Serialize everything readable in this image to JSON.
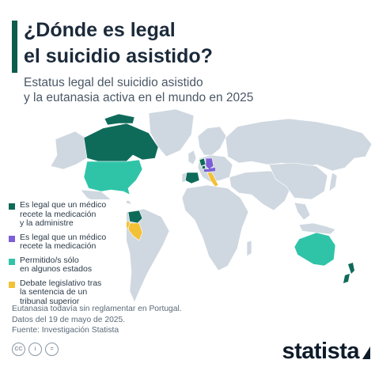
{
  "header": {
    "title_line1": "¿Dónde es legal",
    "title_line2": "el suicidio asistido?",
    "subtitle_line1": "Estatus legal del suicidio asistido",
    "subtitle_line2": "y la eutanasia activa en el mundo en 2025"
  },
  "colors": {
    "base_land": "#cfd8e0",
    "legal_doctor_prescribes_administers": "#0e6b5a",
    "legal_doctor_prescribes": "#7c5fd6",
    "allowed_some_states": "#2fc4a8",
    "legislative_debate": "#f2c136",
    "title_accent": "#0e5c4c"
  },
  "legend": {
    "items": [
      {
        "lines": [
          "Es legal que un médico",
          "recete la medicación",
          "y la administre"
        ],
        "color": "#0e6b5a"
      },
      {
        "lines": [
          "Es legal que un médico",
          "recete la medicación"
        ],
        "color": "#7c5fd6"
      },
      {
        "lines": [
          "Permitido/s sólo",
          "en algunos estados"
        ],
        "color": "#2fc4a8"
      },
      {
        "lines": [
          "Debate legislativo tras",
          "la sentencia de un",
          "tribunal superior"
        ],
        "color": "#f2c136"
      }
    ]
  },
  "notes": {
    "line1": "Eutanasia todavía sin reglamentar en Portugal.",
    "line2": "Datos del 19 de mayo de 2025.",
    "line3": "Fuente: Investigación Statista"
  },
  "footer": {
    "icon1": "CC",
    "icon2": "i",
    "icon3": "=",
    "brand": "statista"
  }
}
